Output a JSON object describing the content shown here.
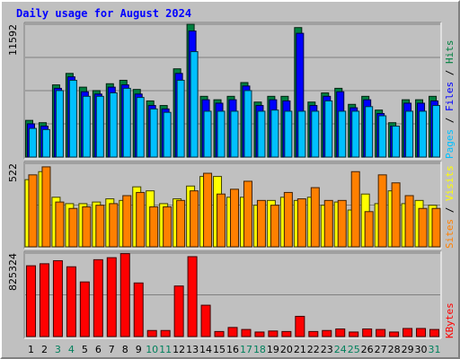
{
  "chart_data": {
    "type": "bar",
    "title": "Daily usage for August 2024",
    "categories": [
      "1",
      "2",
      "3",
      "4",
      "5",
      "6",
      "7",
      "8",
      "9",
      "10",
      "11",
      "12",
      "13",
      "14",
      "15",
      "16",
      "17",
      "18",
      "19",
      "20",
      "21",
      "22",
      "23",
      "24",
      "25",
      "26",
      "27",
      "28",
      "29",
      "30",
      "31"
    ],
    "weekend_days": [
      "3",
      "4",
      "10",
      "11",
      "17",
      "18",
      "24",
      "25",
      "31"
    ],
    "colors": {
      "title": "#0000ff",
      "hits": "#008040",
      "files": "#0000ff",
      "pages": "#00c0ff",
      "visits": "#ffff00",
      "sites": "#ff8000",
      "kbytes": "#ff0000",
      "weekday_label": "#000000",
      "weekend_label": "#00805c",
      "background": "#c0c0c0",
      "gridline": "#808080"
    },
    "panels": [
      {
        "id": "hits_files_pages",
        "max_label": "11592",
        "ylim": [
          0,
          11592
        ],
        "legend": [
          "Pages",
          "/",
          "Files",
          "/",
          "Hits"
        ],
        "series": [
          {
            "name": "Hits",
            "values": [
              3200,
              3000,
              6300,
              7300,
              6100,
              5800,
              6400,
              6700,
              5900,
              4900,
              4500,
              7700,
              11592,
              5300,
              5000,
              5300,
              6500,
              4800,
              5300,
              5300,
              11300,
              4800,
              5600,
              6000,
              4600,
              5300,
              4100,
              3000,
              5000,
              5000,
              5300
            ]
          },
          {
            "name": "Files",
            "values": [
              2900,
              2700,
              6000,
              7000,
              5700,
              5500,
              6100,
              6300,
              5500,
              4500,
              4200,
              7300,
              11000,
              5000,
              4700,
              5000,
              6200,
              4500,
              5000,
              4900,
              10800,
              4500,
              5300,
              5700,
              4300,
              5000,
              3800,
              2700,
              4700,
              4700,
              4900
            ]
          },
          {
            "name": "Pages",
            "values": [
              2500,
              2400,
              5800,
              6700,
              5300,
              5300,
              5600,
              6000,
              5200,
              4200,
              3900,
              6700,
              9200,
              4000,
              4000,
              4000,
              5800,
              4000,
              4100,
              4000,
              4000,
              4000,
              4900,
              4000,
              4000,
              4400,
              3600,
              2700,
              4000,
              4000,
              4500
            ]
          }
        ]
      },
      {
        "id": "visits_sites",
        "max_label": "522",
        "ylim": [
          0,
          522
        ],
        "legend": [
          "Sites",
          "/",
          "Visits"
        ],
        "series": [
          {
            "name": "Visits",
            "values": [
              420,
              470,
              310,
              270,
              270,
              280,
              300,
              290,
              375,
              350,
              270,
              300,
              380,
              440,
              440,
              310,
              310,
              260,
              290,
              310,
              290,
              310,
              260,
              280,
              230,
              330,
              270,
              350,
              270,
              290,
              260
            ]
          },
          {
            "name": "Sites",
            "values": [
              450,
              500,
              280,
              240,
              250,
              260,
              270,
              320,
              340,
              250,
              250,
              290,
              350,
              460,
              330,
              360,
              410,
              290,
              260,
              340,
              300,
              370,
              290,
              290,
              470,
              220,
              450,
              400,
              320,
              240,
              240
            ]
          }
        ]
      },
      {
        "id": "kbytes",
        "max_label": "825324",
        "ylim": [
          0,
          825324
        ],
        "legend": [
          "KBytes"
        ],
        "series": [
          {
            "name": "KBytes",
            "values": [
              700000,
              720000,
              750000,
              690000,
              540000,
              760000,
              780000,
              820000,
              530000,
              60000,
              60000,
              500000,
              790000,
              310000,
              50000,
              90000,
              70000,
              45000,
              55000,
              50000,
              200000,
              50000,
              60000,
              75000,
              45000,
              75000,
              70000,
              45000,
              80000,
              80000,
              70000
            ]
          }
        ]
      }
    ]
  }
}
